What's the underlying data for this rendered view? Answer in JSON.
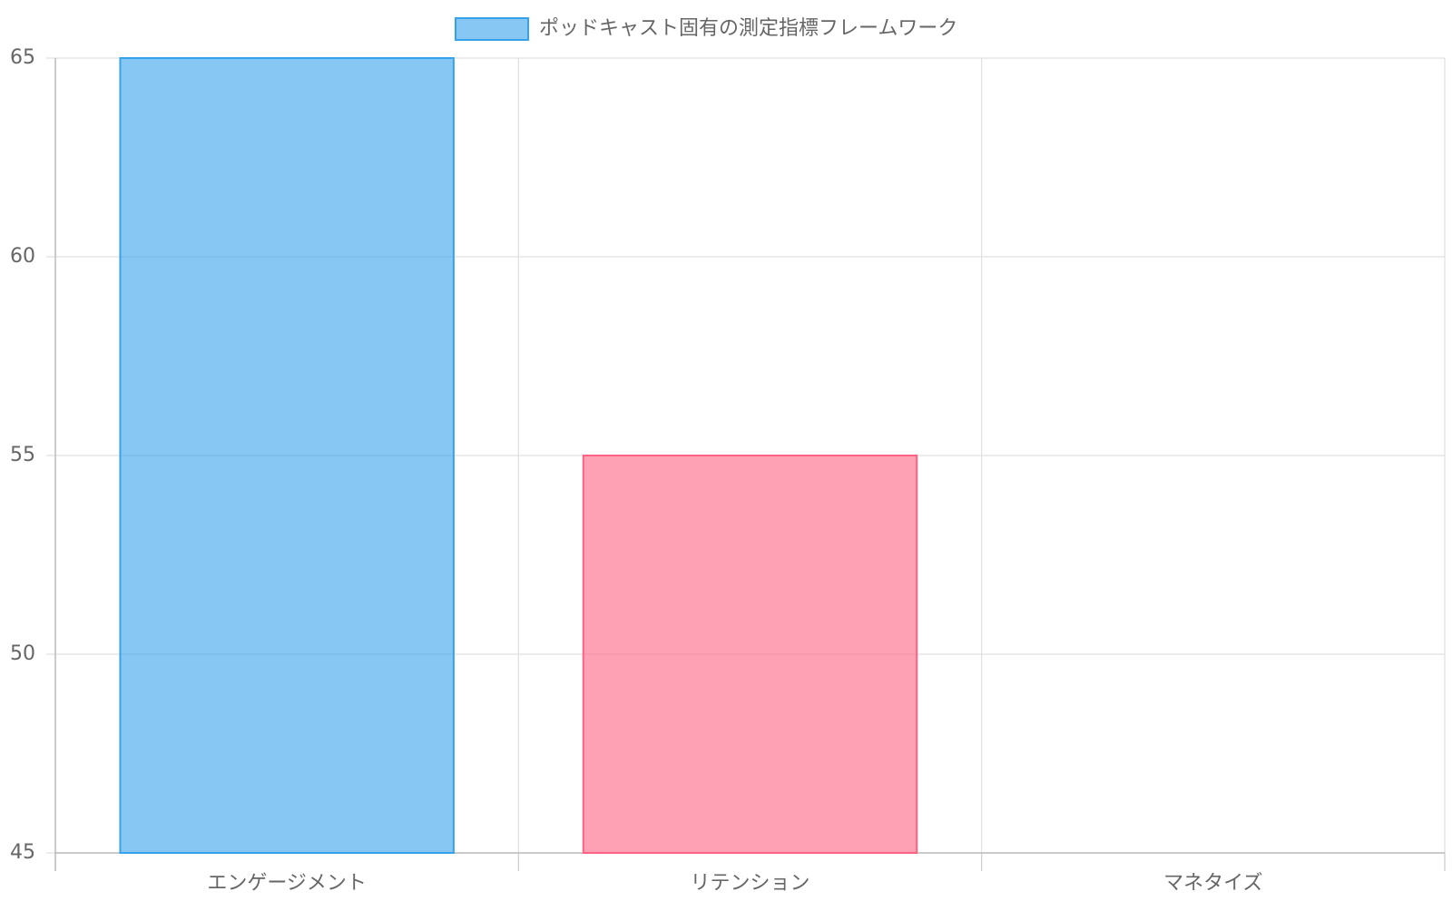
{
  "chart_data": {
    "type": "bar",
    "series": [
      {
        "name": "ポッドキャスト固有の測定指標フレームワーク",
        "colors": [
          "#36a2eb",
          "#ff6384",
          "#ffce56"
        ],
        "values": [
          65,
          55,
          45
        ]
      }
    ],
    "categories": [
      "エンゲージメント",
      "リテンション",
      "マネタイズ"
    ],
    "ylim": [
      45,
      65
    ],
    "yticks": [
      45,
      50,
      55,
      60,
      65
    ],
    "grid": true,
    "legend": "top"
  }
}
